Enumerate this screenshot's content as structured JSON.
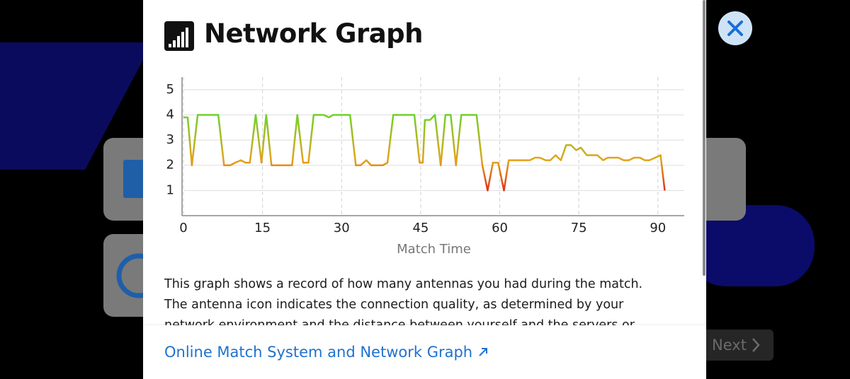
{
  "modal": {
    "title": "Network Graph",
    "description": "This graph shows a record of how many antennas you had during the match. The antenna icon indicates the connection quality, as determined by your network environment and the distance between yourself and the servers or your opponent.",
    "link": "Online Match System and Network Graph"
  },
  "next_button": "Next",
  "chart_data": {
    "type": "line",
    "x_label": "Match Time",
    "x": [
      0,
      0.8,
      1.6,
      2.7,
      3.8,
      4.7,
      5.5,
      6.6,
      7.7,
      8.9,
      9.8,
      10.9,
      11.8,
      12.6,
      13.7,
      14.8,
      15.7,
      16.7,
      17.6,
      18.7,
      19.6,
      20.6,
      21.6,
      22.7,
      23.7,
      24.7,
      25.7,
      26.6,
      27.6,
      28.4,
      29.3,
      30.4,
      31.6,
      32.7,
      33.6,
      34.7,
      35.6,
      36.7,
      37.8,
      38.7,
      39.8,
      40.9,
      41.8,
      42.7,
      43.8,
      44.8,
      45.4,
      45.8,
      46.8,
      47.7,
      48.8,
      49.7,
      50.7,
      51.7,
      52.7,
      53.6,
      54.6,
      55.6,
      56.7,
      57.7,
      58.7,
      59.7,
      60.8,
      61.7,
      62.8,
      63.7,
      64.7,
      65.7,
      66.7,
      67.6,
      68.7,
      69.6,
      70.6,
      71.6,
      72.6,
      73.5,
      74.5,
      75.4,
      76.5,
      77.6,
      78.5,
      79.6,
      80.5,
      81.6,
      82.5,
      83.5,
      84.5,
      85.5,
      86.6,
      87.5,
      88.4,
      89.5,
      90.5,
      91.3
    ],
    "series": [
      {
        "gradient": [
          "#6fd12a",
          "#e3a31a",
          "#e0321b"
        ],
        "values": [
          3.9,
          3.9,
          2,
          4,
          4,
          4,
          4,
          4,
          2,
          2,
          2.1,
          2.2,
          2.1,
          2.1,
          4,
          2.1,
          4,
          2,
          2,
          2,
          2,
          2,
          4,
          2.1,
          2.1,
          4,
          4,
          4,
          3.9,
          4,
          4,
          4,
          4,
          2,
          2,
          2.2,
          2,
          2,
          2,
          2.1,
          4,
          4,
          4,
          4,
          4,
          2.1,
          2.1,
          3.8,
          3.8,
          4,
          2,
          4,
          4,
          2,
          4,
          4,
          4,
          4,
          2,
          1,
          2.1,
          2.1,
          1,
          2.2,
          2.2,
          2.2,
          2.2,
          2.2,
          2.3,
          2.3,
          2.2,
          2.2,
          2.4,
          2.2,
          2.8,
          2.8,
          2.6,
          2.7,
          2.4,
          2.4,
          2.4,
          2.2,
          2.3,
          2.3,
          2.3,
          2.2,
          2.2,
          2.3,
          2.3,
          2.2,
          2.2,
          2.3,
          2.4,
          1
        ]
      }
    ],
    "xlim": [
      0,
      95
    ],
    "ylim": [
      0,
      5.5
    ],
    "xticks": [
      0,
      15,
      30,
      45,
      60,
      75,
      90
    ],
    "yticks": [
      1,
      2,
      3,
      4,
      5
    ],
    "grid": true
  }
}
